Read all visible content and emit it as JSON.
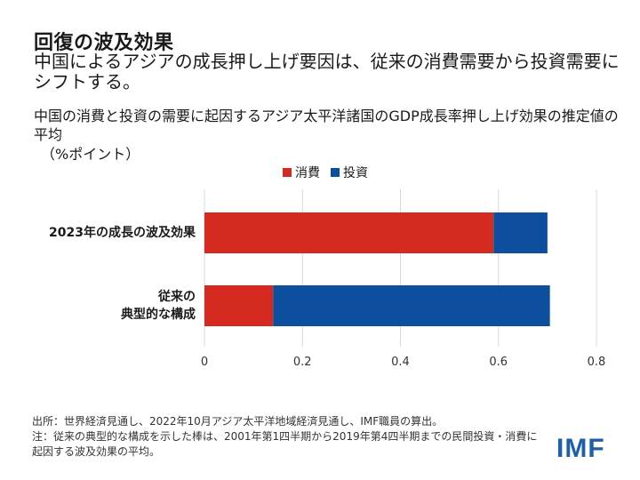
{
  "header": {
    "title": "回復の波及効果",
    "subtitle": "中国によるアジアの成長押し上げ要因は、従来の消費需要から投資需要にシフトする。"
  },
  "chart_data": {
    "type": "bar",
    "orientation": "horizontal",
    "stacked": true,
    "title": "中国の消費と投資の需要に起因するアジア太平洋諸国のGDP成長率押し上げ効果の推定値の平均",
    "unit": "（%ポイント）",
    "categories": [
      "2023年の成長の波及効果",
      "従来の典型的な構成"
    ],
    "category_lines": [
      [
        "2023年の成長の波及効果"
      ],
      [
        "従来の",
        "典型的な構成"
      ]
    ],
    "series": [
      {
        "name": "消費",
        "color": "#d42a20",
        "values": [
          0.59,
          0.14
        ]
      },
      {
        "name": "投資",
        "color": "#0d4f9e",
        "values": [
          0.11,
          0.565
        ]
      }
    ],
    "xlim": [
      0,
      0.8
    ],
    "xticks": [
      "0",
      "0.2",
      "0.4",
      "0.6",
      "0.8"
    ],
    "legend_position": "top-center",
    "grid": true
  },
  "footer": {
    "source": "出所：世界経済見通し、2022年10月アジア太平洋地域経済見通し、IMF職員の算出。",
    "note": "注：従来の典型的な構成を示した棒は、2001年第1四半期から2019年第4四半期までの民間投資・消費に起因する波及効果の平均。",
    "logo": "IMF"
  }
}
